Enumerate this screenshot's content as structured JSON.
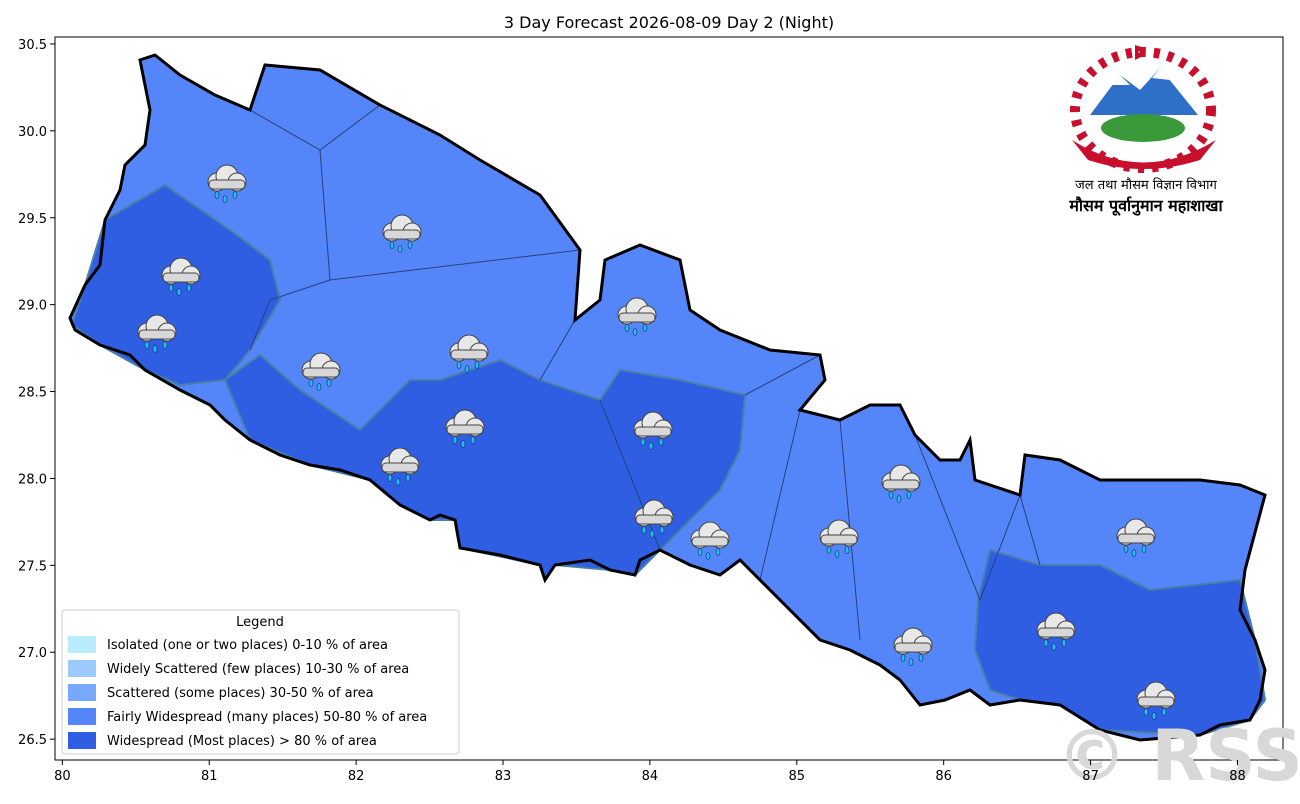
{
  "title": "3 Day Forecast 2026-08-09 Day 2 (Night)",
  "map": {
    "xlim": [
      79.95,
      88.31
    ],
    "ylim": [
      26.38,
      30.54
    ],
    "xticks": [
      80,
      81,
      82,
      83,
      84,
      85,
      86,
      87,
      88
    ],
    "yticks": [
      26.5,
      27.0,
      27.5,
      28.0,
      28.5,
      29.0,
      29.5,
      30.0,
      30.5
    ]
  },
  "ytick_labels": [
    "26.5",
    "27.0",
    "27.5",
    "28.0",
    "28.5",
    "29.0",
    "29.5",
    "30.0",
    "30.5"
  ],
  "legend": {
    "title": "Legend",
    "items": [
      {
        "label": "Isolated (one or two places)  0-10 % of area",
        "color": "#b8ecfd"
      },
      {
        "label": "Widely Scattered (few places)  10-30 % of area",
        "color": "#9ccafd"
      },
      {
        "label": "Scattered (some places)  30-50 % of area",
        "color": "#78a8f9"
      },
      {
        "label": "Fairly Widespread (many places)  50-80 % of area",
        "color": "#5586f9"
      },
      {
        "label": "Widespread (Most places) > 80 % of area",
        "color": "#2f5ee3"
      }
    ]
  },
  "logo": {
    "line1": "जल तथा मौसम विज्ञान विभाग",
    "line2": "मौसम पूर्वानुमान महाशाखा"
  },
  "watermark": "© RSS"
}
